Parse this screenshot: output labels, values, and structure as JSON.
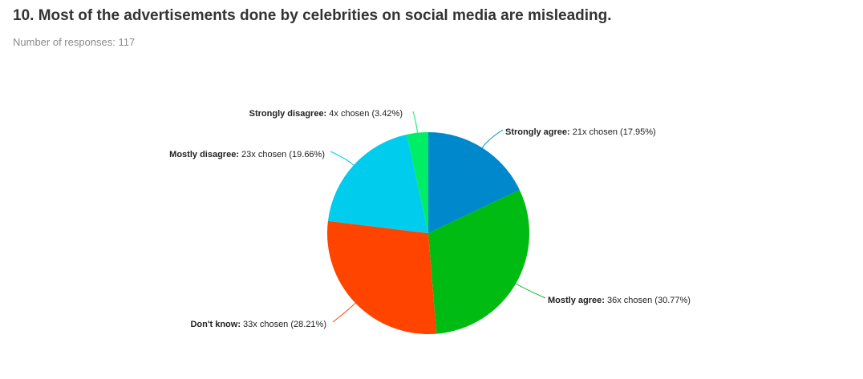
{
  "question": {
    "title": "10. Most of the advertisements done by celebrities on social media are misleading.",
    "responses_label": "Number of responses: 117"
  },
  "chart_data": {
    "type": "pie",
    "total_responses": 117,
    "slices": [
      {
        "label": "Strongly agree",
        "count": 21,
        "percent": 17.95,
        "count_text": "21x chosen",
        "percent_text": "(17.95%)",
        "color": "#0088cc"
      },
      {
        "label": "Mostly agree",
        "count": 36,
        "percent": 30.77,
        "count_text": "36x chosen",
        "percent_text": "(30.77%)",
        "color": "#00bb11"
      },
      {
        "label": "Don't know",
        "count": 33,
        "percent": 28.21,
        "count_text": "33x chosen",
        "percent_text": "(28.21%)",
        "color": "#ff4400"
      },
      {
        "label": "Mostly disagree",
        "count": 23,
        "percent": 19.66,
        "count_text": "23x chosen",
        "percent_text": "(19.66%)",
        "color": "#00ccee"
      },
      {
        "label": "Strongly disagree",
        "count": 4,
        "percent": 3.42,
        "count_text": "4x chosen",
        "percent_text": "(3.42%)",
        "color": "#00ee66"
      }
    ]
  }
}
